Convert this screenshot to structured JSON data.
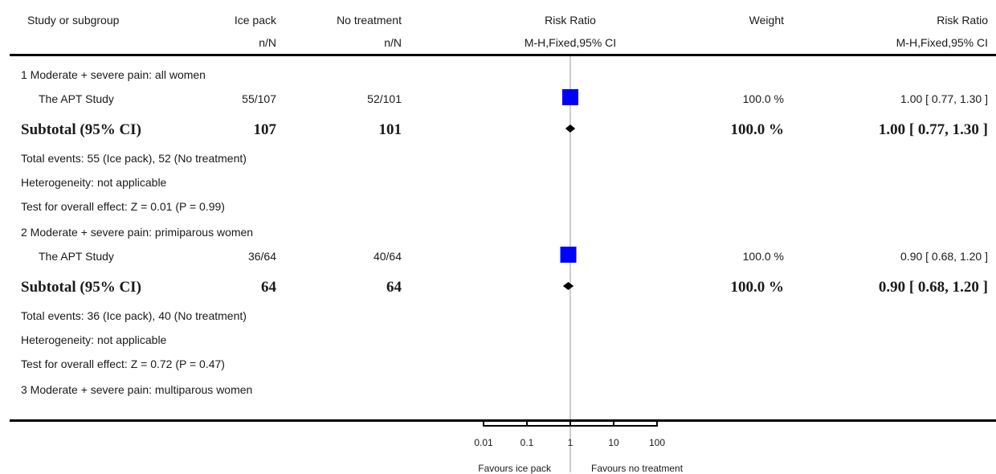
{
  "header": {
    "study_col": "Study or subgroup",
    "ice_col": "Ice pack",
    "ice_sub": "n/N",
    "none_col": "No treatment",
    "none_sub": "n/N",
    "rr_col": "Risk Ratio",
    "rr_sub": "M-H,Fixed,95% CI",
    "weight_col": "Weight",
    "rr2_col": "Risk Ratio",
    "rr2_sub": "M-H,Fixed,95% CI"
  },
  "groups": [
    {
      "title": "1 Moderate + severe pain: all women",
      "study": {
        "name": "The APT Study",
        "ice": "55/107",
        "none": "52/101",
        "weight": "100.0 %",
        "ci": "1.00 [ 0.77, 1.30 ]"
      },
      "subtotal": {
        "label": "Subtotal (95% CI)",
        "ice": "107",
        "none": "101",
        "weight": "100.0 %",
        "ci": "1.00 [ 0.77, 1.30 ]"
      },
      "events": "Total events: 55 (Ice pack), 52 (No treatment)",
      "heterogeneity": "Heterogeneity: not applicable",
      "overall": "Test for overall effect: Z = 0.01 (P = 0.99)"
    },
    {
      "title": "2 Moderate + severe pain: primiparous women",
      "study": {
        "name": "The APT Study",
        "ice": "36/64",
        "none": "40/64",
        "weight": "100.0 %",
        "ci": "0.90 [ 0.68, 1.20 ]"
      },
      "subtotal": {
        "label": "Subtotal (95% CI)",
        "ice": "64",
        "none": "64",
        "weight": "100.0 %",
        "ci": "0.90 [ 0.68, 1.20 ]"
      },
      "events": "Total events: 36 (Ice pack), 40 (No treatment)",
      "heterogeneity": "Heterogeneity: not applicable",
      "overall": "Test for overall effect: Z = 0.72 (P = 0.47)"
    },
    {
      "title": "3 Moderate + severe pain: multiparous women"
    }
  ],
  "axis": {
    "ticks": [
      "0.01",
      "0.1",
      "1",
      "10",
      "100"
    ],
    "favours_left": "Favours ice pack",
    "favours_right": "Favours no treatment"
  },
  "chart_data": {
    "type": "forest",
    "scale": "log",
    "xlim": [
      0.01,
      100
    ],
    "reference_line": 1,
    "xticks": [
      0.01,
      0.1,
      1,
      10,
      100
    ],
    "studies": [
      {
        "group": 1,
        "kind": "study",
        "rr": 1.0,
        "lo": 0.77,
        "hi": 1.3,
        "weight": 100.0
      },
      {
        "group": 1,
        "kind": "subtotal",
        "rr": 1.0,
        "lo": 0.77,
        "hi": 1.3
      },
      {
        "group": 2,
        "kind": "study",
        "rr": 0.9,
        "lo": 0.68,
        "hi": 1.2,
        "weight": 100.0
      },
      {
        "group": 2,
        "kind": "subtotal",
        "rr": 0.9,
        "lo": 0.68,
        "hi": 1.2
      }
    ],
    "marker_color": "#0000ff",
    "diamond_color": "#000000"
  }
}
